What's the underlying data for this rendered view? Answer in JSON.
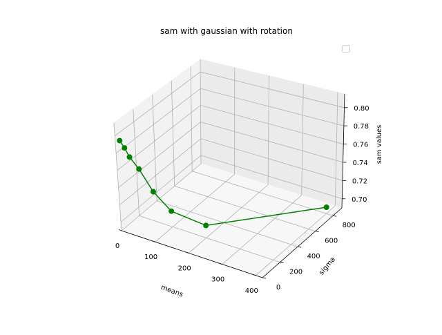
{
  "chart_data": {
    "type": "line",
    "title": "sam with gaussian with rotation",
    "xlabel": "means",
    "ylabel": "sigma",
    "zlabel": "sam values",
    "x_ticks": [
      "0",
      "100",
      "200",
      "300",
      "400"
    ],
    "y_ticks": [
      "0",
      "200",
      "400",
      "600",
      "800"
    ],
    "z_ticks": [
      "0.70",
      "0.72",
      "0.74",
      "0.76",
      "0.78",
      "0.80"
    ],
    "xlim": [
      0,
      420
    ],
    "ylim": [
      0,
      900
    ],
    "zlim": [
      0.69,
      0.815
    ],
    "grid": true,
    "legend": {
      "position": "top-right",
      "entries": [
        ""
      ]
    },
    "series": [
      {
        "color": "#008000",
        "marker": "circle",
        "x": [
          10,
          20,
          30,
          50,
          80,
          120,
          200,
          400
        ],
        "y": [
          10,
          20,
          30,
          50,
          80,
          120,
          200,
          800
        ],
        "z": [
          0.795,
          0.787,
          0.777,
          0.764,
          0.739,
          0.718,
          0.7045,
          0.697
        ]
      }
    ]
  }
}
